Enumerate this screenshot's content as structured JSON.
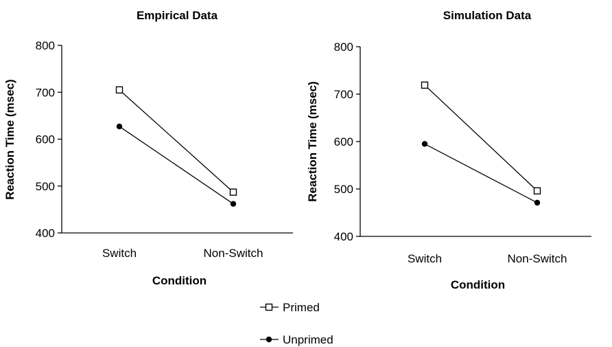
{
  "legend": [
    {
      "label": "Primed",
      "marker": "square-open"
    },
    {
      "label": "Unprimed",
      "marker": "circle-filled"
    }
  ],
  "chart_data": [
    {
      "type": "line",
      "title": "Empirical Data",
      "xlabel": "Condition",
      "ylabel": "Reaction Time (msec)",
      "categories": [
        "Switch",
        "Non-Switch"
      ],
      "ylim": [
        400,
        800
      ],
      "yticks": [
        400,
        500,
        600,
        700,
        800
      ],
      "grid": false,
      "series": [
        {
          "name": "Primed",
          "marker": "square-open",
          "values": [
            705,
            487
          ]
        },
        {
          "name": "Unprimed",
          "marker": "circle-filled",
          "values": [
            627,
            462
          ]
        }
      ]
    },
    {
      "type": "line",
      "title": "Simulation Data",
      "xlabel": "Condition",
      "ylabel": "Reaction Time (msec)",
      "categories": [
        "Switch",
        "Non-Switch"
      ],
      "ylim": [
        400,
        800
      ],
      "yticks": [
        400,
        500,
        600,
        700,
        800
      ],
      "grid": false,
      "series": [
        {
          "name": "Primed",
          "marker": "square-open",
          "values": [
            719,
            496
          ]
        },
        {
          "name": "Unprimed",
          "marker": "circle-filled",
          "values": [
            595,
            471
          ]
        }
      ]
    }
  ]
}
